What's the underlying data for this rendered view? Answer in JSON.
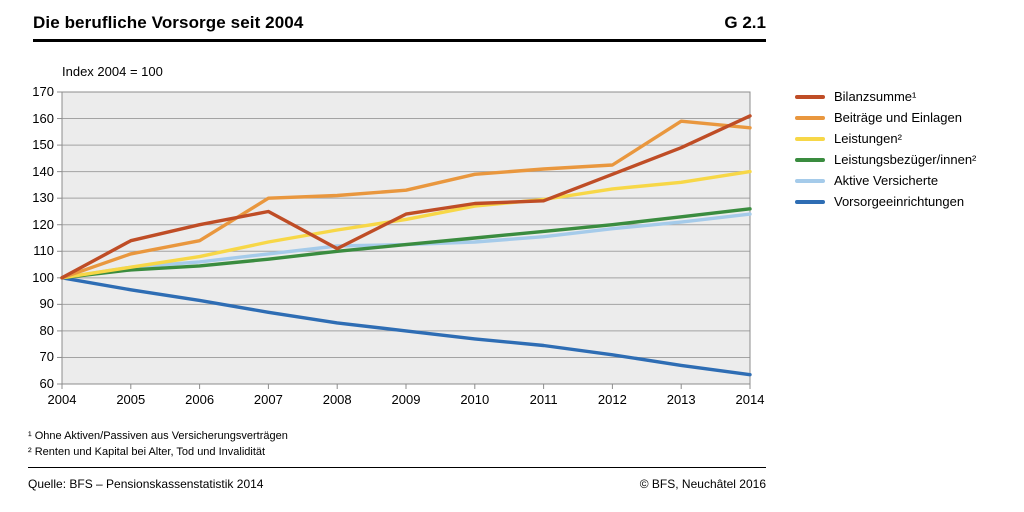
{
  "header": {
    "title": "Die berufliche Vorsorge seit 2004",
    "graph_id": "G 2.1"
  },
  "chart_data": {
    "type": "line",
    "title": "Die berufliche Vorsorge seit 2004",
    "subtitle": "Index 2004 = 100",
    "x": [
      2004,
      2005,
      2006,
      2007,
      2008,
      2009,
      2010,
      2011,
      2012,
      2013,
      2014
    ],
    "ylim": [
      60,
      170
    ],
    "y_ticks": [
      170,
      160,
      150,
      140,
      130,
      120,
      110,
      100,
      90,
      80,
      70,
      60
    ],
    "grid": "horizontal",
    "legend_position": "right",
    "plot_bg": "#ececec",
    "grid_color": "#a3a3a3",
    "border_color": "#8c8c8c",
    "series": [
      {
        "name": "Bilanzsumme¹",
        "color": "#bf4d26",
        "values": [
          100,
          114,
          120,
          125,
          111,
          124,
          128,
          129,
          139,
          149,
          161
        ]
      },
      {
        "name": "Beiträge und Einlagen",
        "color": "#e9973e",
        "values": [
          100,
          109,
          114,
          130,
          131,
          133,
          139,
          141,
          142.5,
          159,
          156.5
        ]
      },
      {
        "name": "Leistungen²",
        "color": "#f7d747",
        "values": [
          100,
          104,
          108,
          113.5,
          118,
          122,
          127,
          129.5,
          133.5,
          136,
          140
        ]
      },
      {
        "name": "Leistungsbezüger/innen²",
        "color": "#3a8c3f",
        "values": [
          100,
          103,
          104.5,
          107,
          110,
          112.5,
          115,
          117.5,
          120,
          123,
          126
        ]
      },
      {
        "name": "Aktive Versicherte",
        "color": "#a5cbea",
        "values": [
          100,
          104,
          106,
          109,
          112,
          112.5,
          113.5,
          115.5,
          118.5,
          121,
          124
        ]
      },
      {
        "name": "Vorsorgeeinrichtungen",
        "color": "#2e6db4",
        "values": [
          100,
          95.5,
          91.5,
          87,
          83,
          80,
          77,
          74.5,
          71,
          67,
          63.5
        ]
      }
    ]
  },
  "footnotes": {
    "line1": "¹ Ohne Aktiven/Passiven aus Versicherungsverträgen",
    "line2": "² Renten und Kapital bei Alter, Tod und Invalidität"
  },
  "source": {
    "left": "Quelle: BFS – Pensionskassenstatistik 2014",
    "right": "© BFS, Neuchâtel 2016"
  }
}
